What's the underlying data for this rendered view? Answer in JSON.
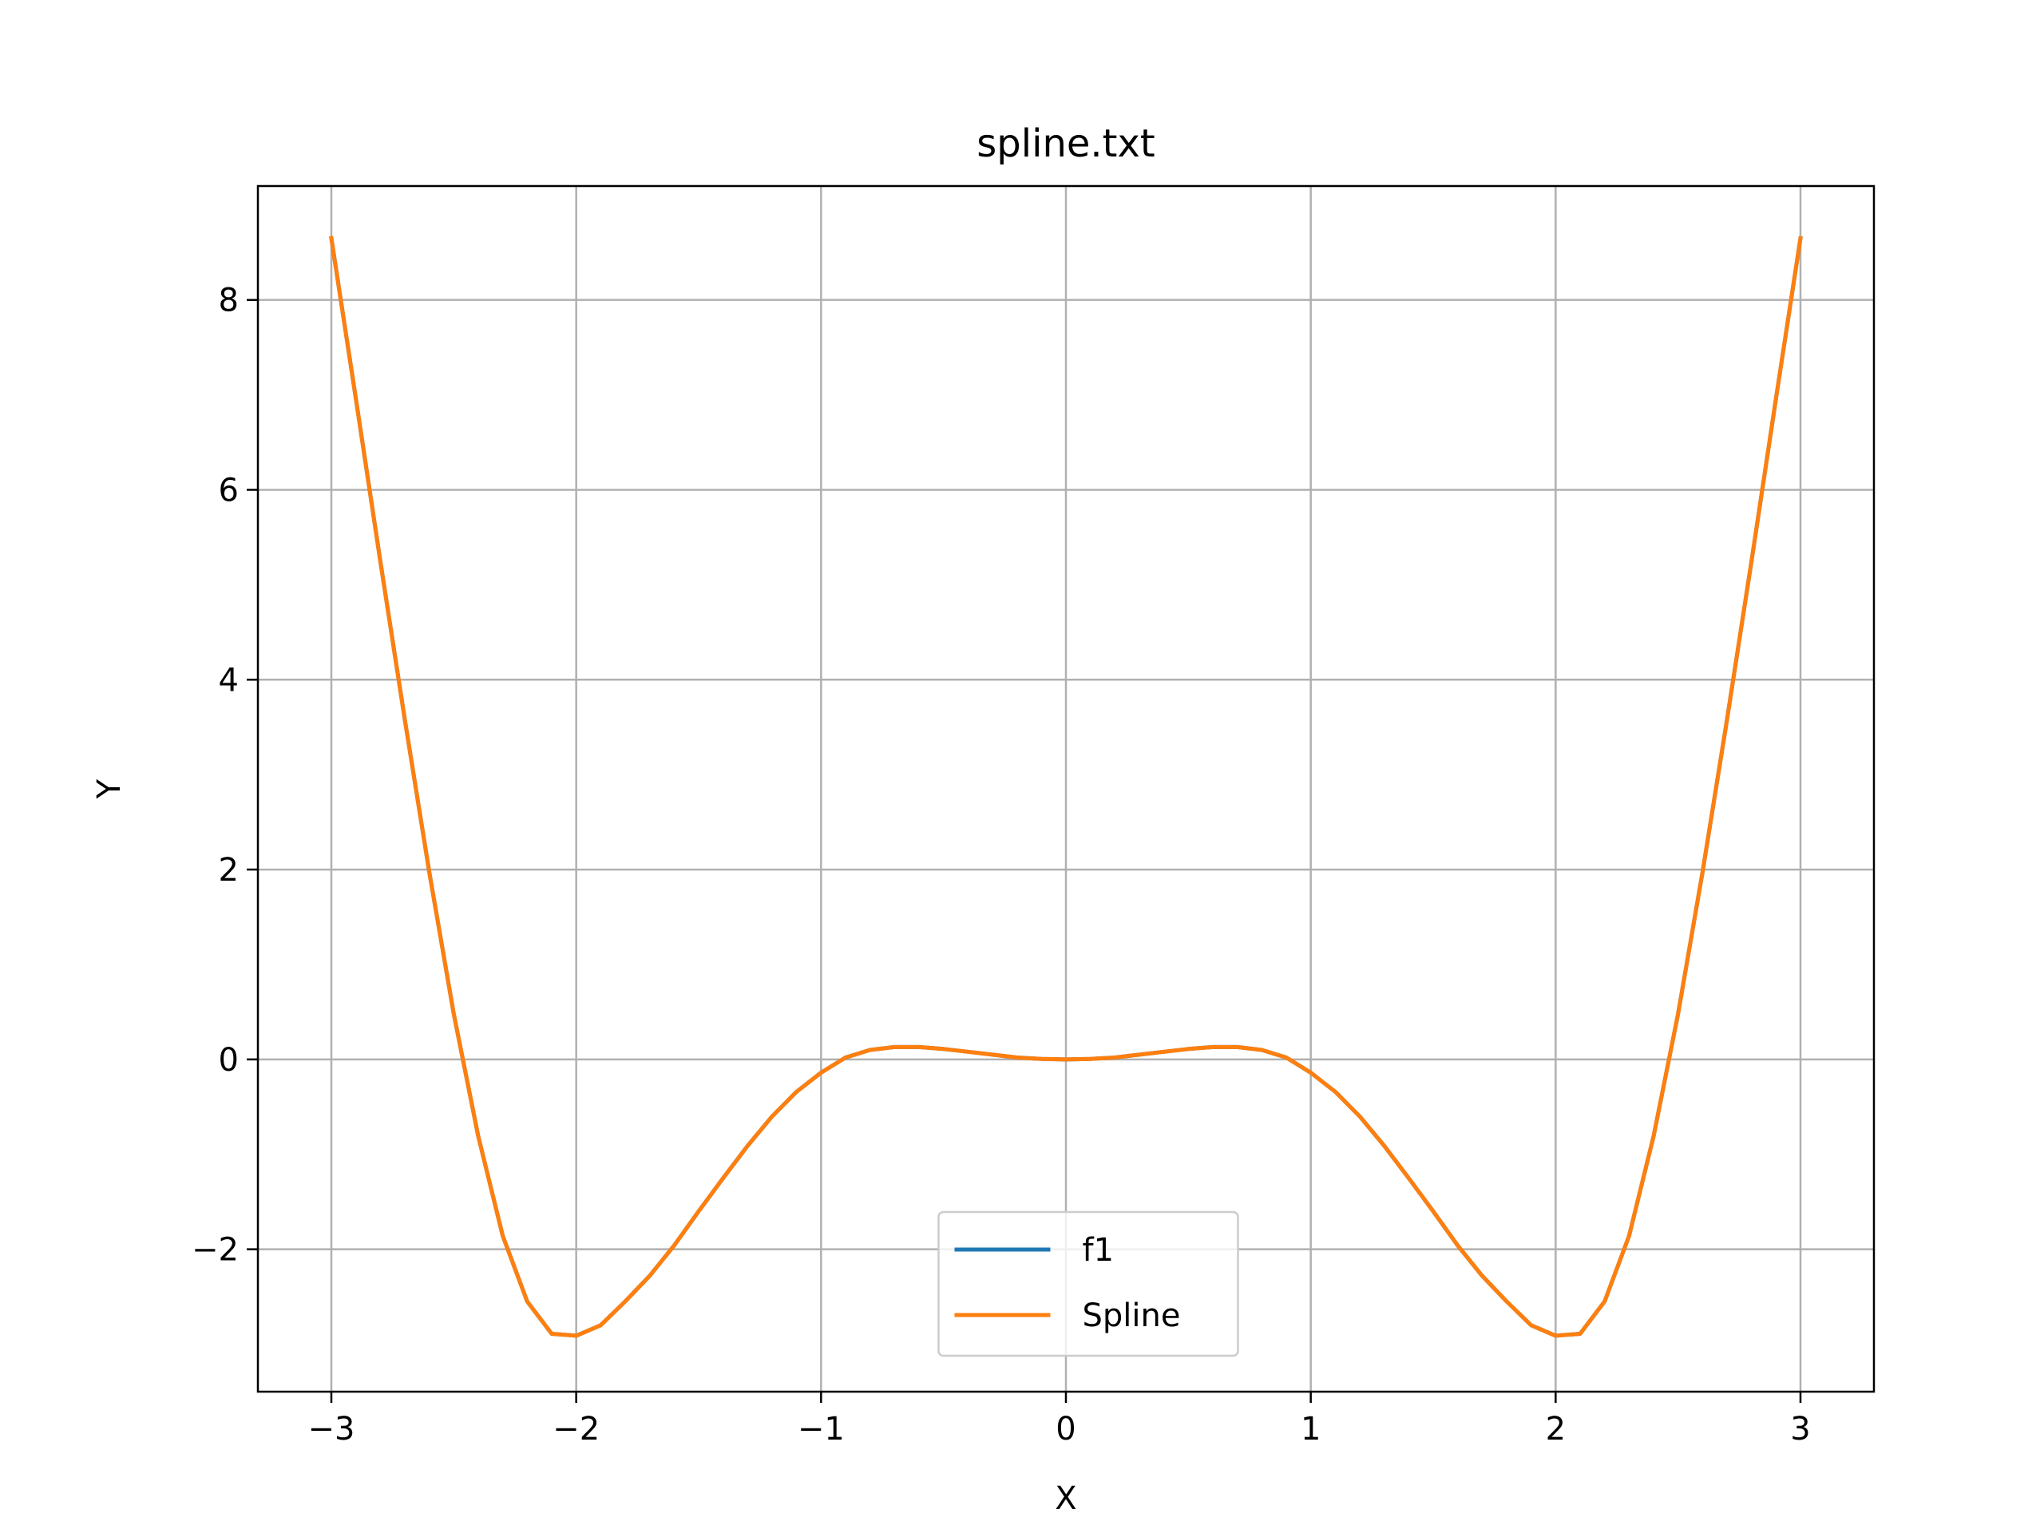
{
  "chart_data": {
    "type": "line",
    "title": "spline.txt",
    "xlabel": "X",
    "ylabel": "Y",
    "xlim": [
      -3.3,
      3.3
    ],
    "ylim": [
      -3.5,
      9.2
    ],
    "xticks": [
      -3,
      -2,
      -1,
      0,
      1,
      2,
      3
    ],
    "xtick_labels": [
      "−3",
      "−2",
      "−1",
      "0",
      "1",
      "2",
      "3"
    ],
    "yticks": [
      -2,
      0,
      2,
      4,
      6,
      8
    ],
    "ytick_labels": [
      "−2",
      "0",
      "2",
      "4",
      "6",
      "8"
    ],
    "grid": true,
    "legend_position": "lower center",
    "series": [
      {
        "name": "f1",
        "color": "#1f77b4",
        "x": [
          -3.0,
          -2.9,
          -2.8,
          -2.7,
          -2.6,
          -2.5,
          -2.4,
          -2.3,
          -2.2,
          -2.1,
          -2.0,
          -1.9,
          -1.8,
          -1.7,
          -1.6,
          -1.5,
          -1.4,
          -1.3,
          -1.2,
          -1.1,
          -1.0,
          -0.9,
          -0.8,
          -0.7,
          -0.6,
          -0.5,
          -0.4,
          -0.3,
          -0.2,
          -0.1,
          0.0,
          0.1,
          0.2,
          0.3,
          0.4,
          0.5,
          0.6,
          0.7,
          0.8,
          0.9,
          1.0,
          1.1,
          1.2,
          1.3,
          1.4,
          1.5,
          1.6,
          1.7,
          1.8,
          1.9,
          2.0,
          2.1,
          2.2,
          2.3,
          2.4,
          2.5,
          2.6,
          2.7,
          2.8,
          2.9,
          3.0
        ],
        "y": [
          8.65,
          6.96,
          5.25,
          3.58,
          1.97,
          0.48,
          -0.81,
          -1.86,
          -2.55,
          -2.89,
          -2.91,
          -2.8,
          -2.55,
          -2.28,
          -1.96,
          -1.6,
          -1.25,
          -0.91,
          -0.6,
          -0.34,
          -0.14,
          0.02,
          0.1,
          0.13,
          0.13,
          0.11,
          0.08,
          0.05,
          0.02,
          0.005,
          0.0,
          0.005,
          0.02,
          0.05,
          0.08,
          0.11,
          0.13,
          0.13,
          0.1,
          0.02,
          -0.14,
          -0.34,
          -0.6,
          -0.91,
          -1.25,
          -1.6,
          -1.96,
          -2.28,
          -2.55,
          -2.8,
          -2.91,
          -2.89,
          -2.55,
          -1.86,
          -0.81,
          0.48,
          1.97,
          3.58,
          5.25,
          6.96,
          8.65
        ]
      },
      {
        "name": "Spline",
        "color": "#ff7f0e",
        "x": [
          -3.0,
          -2.9,
          -2.8,
          -2.7,
          -2.6,
          -2.5,
          -2.4,
          -2.3,
          -2.2,
          -2.1,
          -2.0,
          -1.9,
          -1.8,
          -1.7,
          -1.6,
          -1.5,
          -1.4,
          -1.3,
          -1.2,
          -1.1,
          -1.0,
          -0.9,
          -0.8,
          -0.7,
          -0.6,
          -0.5,
          -0.4,
          -0.3,
          -0.2,
          -0.1,
          0.0,
          0.1,
          0.2,
          0.3,
          0.4,
          0.5,
          0.6,
          0.7,
          0.8,
          0.9,
          1.0,
          1.1,
          1.2,
          1.3,
          1.4,
          1.5,
          1.6,
          1.7,
          1.8,
          1.9,
          2.0,
          2.1,
          2.2,
          2.3,
          2.4,
          2.5,
          2.6,
          2.7,
          2.8,
          2.9,
          3.0
        ],
        "y": [
          8.65,
          6.96,
          5.25,
          3.58,
          1.97,
          0.48,
          -0.81,
          -1.86,
          -2.55,
          -2.89,
          -2.91,
          -2.8,
          -2.55,
          -2.28,
          -1.96,
          -1.6,
          -1.25,
          -0.91,
          -0.6,
          -0.34,
          -0.14,
          0.02,
          0.1,
          0.13,
          0.13,
          0.11,
          0.08,
          0.05,
          0.02,
          0.005,
          0.0,
          0.005,
          0.02,
          0.05,
          0.08,
          0.11,
          0.13,
          0.13,
          0.1,
          0.02,
          -0.14,
          -0.34,
          -0.6,
          -0.91,
          -1.25,
          -1.6,
          -1.96,
          -2.28,
          -2.55,
          -2.8,
          -2.91,
          -2.89,
          -2.55,
          -1.86,
          -0.81,
          0.48,
          1.97,
          3.58,
          5.25,
          6.96,
          8.65
        ]
      }
    ]
  }
}
